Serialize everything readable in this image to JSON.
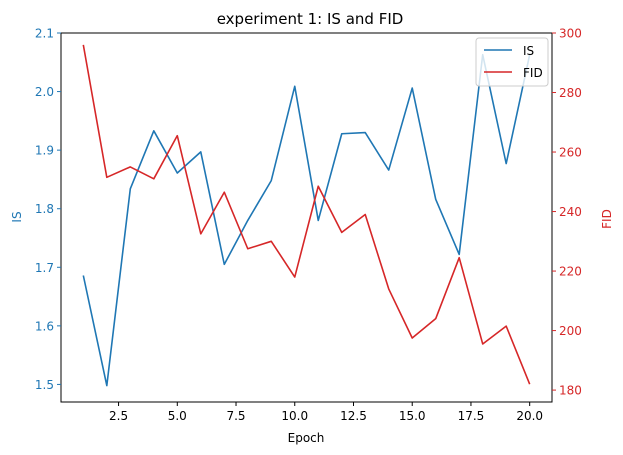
{
  "chart_data": {
    "type": "line",
    "title": "experiment 1: IS and FID",
    "xlabel": "Epoch",
    "ylabel_left": "IS",
    "ylabel_right": "FID",
    "x": [
      1,
      2,
      3,
      4,
      5,
      6,
      7,
      8,
      9,
      10,
      11,
      12,
      13,
      14,
      15,
      16,
      17,
      18,
      19,
      20
    ],
    "xlim": [
      0.05,
      20.95
    ],
    "ylim_left": [
      1.47,
      2.1
    ],
    "ylim_right": [
      176,
      300
    ],
    "xticks": [
      2.5,
      5.0,
      7.5,
      10.0,
      12.5,
      15.0,
      17.5,
      20.0
    ],
    "xtick_labels": [
      "2.5",
      "5.0",
      "7.5",
      "10.0",
      "12.5",
      "15.0",
      "17.5",
      "20.0"
    ],
    "yticks_left": [
      1.5,
      1.6,
      1.7,
      1.8,
      1.9,
      2.0,
      2.1
    ],
    "ytick_labels_left": [
      "1.5",
      "1.6",
      "1.7",
      "1.8",
      "1.9",
      "2.0",
      "2.1"
    ],
    "yticks_right": [
      180,
      200,
      220,
      240,
      260,
      280,
      300
    ],
    "ytick_labels_right": [
      "180",
      "200",
      "220",
      "240",
      "260",
      "280",
      "300"
    ],
    "grid": false,
    "legend_position": "top-right",
    "series": [
      {
        "name": "IS",
        "axis": "left",
        "color": "#1f77b4",
        "values": [
          1.686,
          1.498,
          1.834,
          1.933,
          1.861,
          1.897,
          1.705,
          1.78,
          1.848,
          2.009,
          1.78,
          1.928,
          1.93,
          1.866,
          2.006,
          1.816,
          1.722,
          2.063,
          1.877,
          2.063
        ]
      },
      {
        "name": "FID",
        "axis": "right",
        "color": "#d62728",
        "values": [
          296.0,
          251.5,
          255.0,
          251.0,
          265.5,
          232.5,
          246.5,
          227.5,
          230.0,
          218.0,
          248.5,
          233.0,
          239.0,
          214.0,
          197.5,
          204.0,
          224.5,
          195.5,
          201.5,
          182.0
        ]
      }
    ]
  }
}
